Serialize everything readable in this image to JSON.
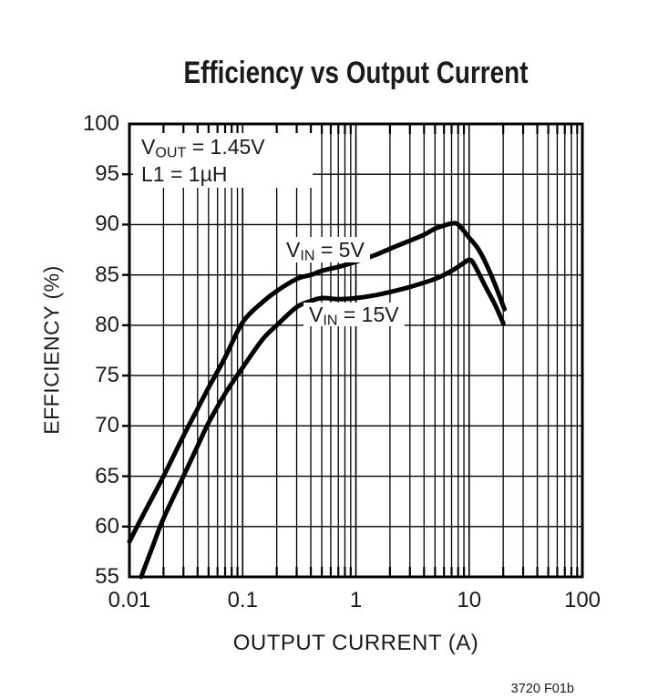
{
  "figure": {
    "title": "Efficiency vs Output Current",
    "footer_code": "3720 F01b"
  },
  "annotation": {
    "line1": {
      "pre": "V",
      "sub": "OUT",
      "post": " = 1.45V"
    },
    "line2": "L1 = 1µH"
  },
  "chart_data": {
    "type": "line",
    "title": "Efficiency vs Output Current",
    "xlabel": "OUTPUT CURRENT (A)",
    "ylabel": "EFFICIENCY (%)",
    "x_scale": "log",
    "xlim": [
      0.01,
      100
    ],
    "ylim": [
      55,
      100
    ],
    "x_ticks": [
      {
        "value": 0.01,
        "label": "0.01"
      },
      {
        "value": 0.1,
        "label": "0.1"
      },
      {
        "value": 1,
        "label": "1"
      },
      {
        "value": 10,
        "label": "10"
      },
      {
        "value": 100,
        "label": "100"
      }
    ],
    "y_ticks": [
      {
        "value": 100,
        "label": "100"
      },
      {
        "value": 95,
        "label": "95"
      },
      {
        "value": 90,
        "label": "90"
      },
      {
        "value": 85,
        "label": "85"
      },
      {
        "value": 80,
        "label": "80"
      },
      {
        "value": 75,
        "label": "75"
      },
      {
        "value": 70,
        "label": "70"
      },
      {
        "value": 65,
        "label": "65"
      },
      {
        "value": 60,
        "label": "60"
      },
      {
        "value": 55,
        "label": "55"
      }
    ],
    "grid": "full log minor grid, horizontal every 5%",
    "legend_position": "inline-labels",
    "colors": {
      "line": "#000000",
      "grid": "#000000",
      "frame": "#000000"
    },
    "series": [
      {
        "name": "VIN = 5V",
        "label": {
          "pre": "V",
          "sub": "IN",
          "post": " = 5V"
        },
        "points": [
          [
            0.01,
            58.5
          ],
          [
            0.013,
            61
          ],
          [
            0.02,
            65
          ],
          [
            0.03,
            69
          ],
          [
            0.04,
            71.7
          ],
          [
            0.05,
            73.8
          ],
          [
            0.07,
            76.8
          ],
          [
            0.1,
            80.3
          ],
          [
            0.15,
            82.3
          ],
          [
            0.2,
            83.4
          ],
          [
            0.3,
            84.6
          ],
          [
            0.4,
            85.0
          ],
          [
            0.5,
            85.4
          ],
          [
            0.7,
            85.8
          ],
          [
            1,
            86.3
          ],
          [
            1.5,
            87.0
          ],
          [
            2,
            87.6
          ],
          [
            3,
            88.4
          ],
          [
            4,
            89.0
          ],
          [
            5,
            89.6
          ],
          [
            6,
            89.9
          ],
          [
            7,
            90.1
          ],
          [
            8,
            90.0
          ],
          [
            10,
            88.7
          ],
          [
            12,
            87.6
          ],
          [
            14,
            86.2
          ],
          [
            17,
            84.0
          ],
          [
            20.5,
            81.6
          ]
        ]
      },
      {
        "name": "VIN = 15V",
        "label": {
          "pre": "V",
          "sub": "IN",
          "post": " = 15V"
        },
        "points": [
          [
            0.0127,
            55
          ],
          [
            0.016,
            58
          ],
          [
            0.02,
            60.8
          ],
          [
            0.03,
            65
          ],
          [
            0.04,
            68
          ],
          [
            0.05,
            70.3
          ],
          [
            0.07,
            73.2
          ],
          [
            0.1,
            75.8
          ],
          [
            0.15,
            78.6
          ],
          [
            0.2,
            80.0
          ],
          [
            0.3,
            81.8
          ],
          [
            0.4,
            82.4
          ],
          [
            0.5,
            82.7
          ],
          [
            0.7,
            82.6
          ],
          [
            1,
            82.7
          ],
          [
            1.5,
            83.0
          ],
          [
            2,
            83.3
          ],
          [
            3,
            83.8
          ],
          [
            5,
            84.6
          ],
          [
            7,
            85.4
          ],
          [
            9,
            86.2
          ],
          [
            10,
            86.5
          ],
          [
            11,
            86.1
          ],
          [
            14,
            83.8
          ],
          [
            17,
            82.0
          ],
          [
            20,
            80.2
          ]
        ]
      }
    ]
  }
}
